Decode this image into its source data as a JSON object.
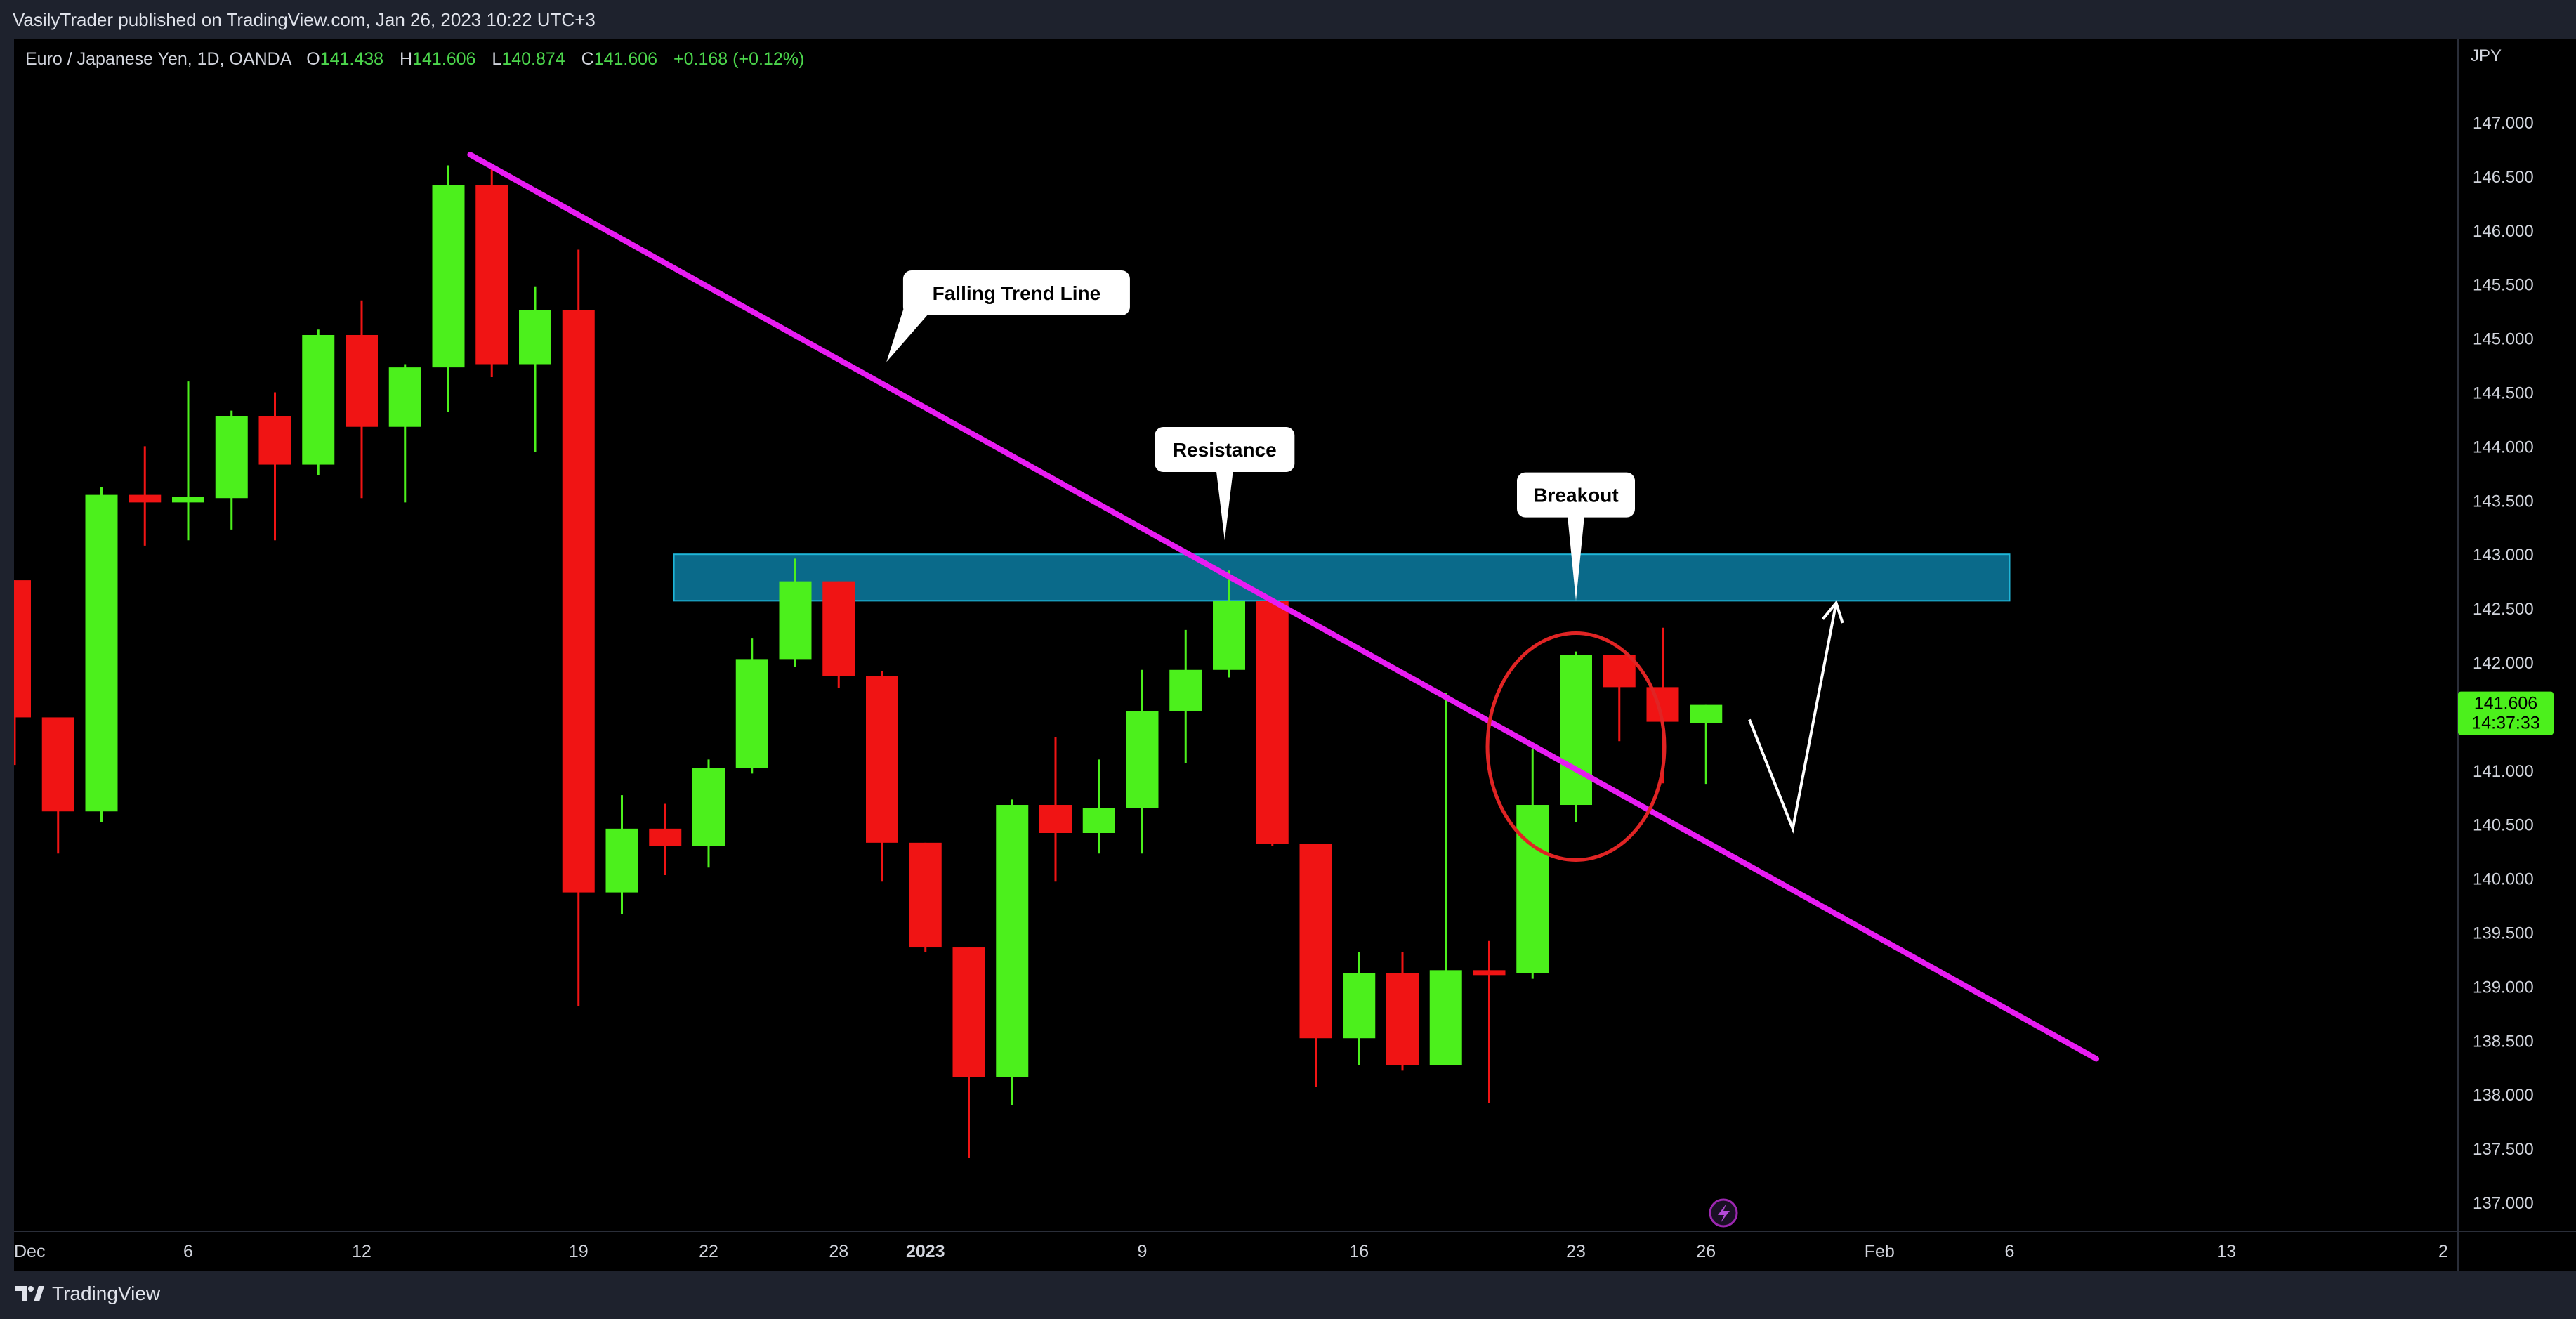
{
  "header": {
    "publisher": "VasilyTrader published on TradingView.com, Jan 26, 2023 10:22 UTC+3"
  },
  "symbol": {
    "name": "Euro / Japanese Yen, 1D, OANDA",
    "o_label": "O",
    "o": "141.438",
    "h_label": "H",
    "h": "141.606",
    "l_label": "L",
    "l": "140.874",
    "c_label": "C",
    "c": "141.606",
    "change": "+0.168 (+0.12%)"
  },
  "footer": {
    "brand": "TradingView"
  },
  "colors": {
    "up": "#4cf01c",
    "down": "#f01414",
    "trend": "#e81cf2",
    "zone_fill": "#0a6a8a",
    "zone_stroke": "#1fb6d8",
    "circle": "#e02424"
  },
  "chart_data": {
    "type": "candlestick",
    "currency": "JPY",
    "y_ticks": [
      "147.000",
      "146.500",
      "146.000",
      "145.500",
      "145.000",
      "144.500",
      "144.000",
      "143.500",
      "143.000",
      "142.500",
      "142.000",
      "141.500",
      "141.000",
      "140.500",
      "140.000",
      "139.500",
      "139.000",
      "138.500",
      "138.000",
      "137.500",
      "137.000"
    ],
    "ylim": [
      136.7,
      147.4
    ],
    "x_ticks": [
      {
        "label": "Dec",
        "day": 0,
        "bold": false
      },
      {
        "label": "6",
        "day": 4,
        "bold": false
      },
      {
        "label": "12",
        "day": 8,
        "bold": false
      },
      {
        "label": "19",
        "day": 13,
        "bold": false
      },
      {
        "label": "22",
        "day": 16,
        "bold": false
      },
      {
        "label": "28",
        "day": 19,
        "bold": false
      },
      {
        "label": "2023",
        "day": 21,
        "bold": true
      },
      {
        "label": "9",
        "day": 26,
        "bold": false
      },
      {
        "label": "16",
        "day": 31,
        "bold": false
      },
      {
        "label": "23",
        "day": 36,
        "bold": false
      },
      {
        "label": "26",
        "day": 39,
        "bold": false
      },
      {
        "label": "Feb",
        "day": 43,
        "bold": false
      },
      {
        "label": "6",
        "day": 46,
        "bold": false
      },
      {
        "label": "13",
        "day": 51,
        "bold": false
      },
      {
        "label": "2",
        "day": 56,
        "bold": false
      }
    ],
    "candles": [
      {
        "o": 142.76,
        "h": 142.76,
        "l": 141.05,
        "c": 141.49
      },
      {
        "o": 141.49,
        "h": 141.49,
        "l": 140.23,
        "c": 140.62
      },
      {
        "o": 140.62,
        "h": 143.62,
        "l": 140.52,
        "c": 143.55
      },
      {
        "o": 143.55,
        "h": 144.0,
        "l": 143.08,
        "c": 143.48
      },
      {
        "o": 143.48,
        "h": 144.6,
        "l": 143.13,
        "c": 143.53
      },
      {
        "o": 143.52,
        "h": 144.33,
        "l": 143.23,
        "c": 144.28
      },
      {
        "o": 144.28,
        "h": 144.5,
        "l": 143.13,
        "c": 143.83
      },
      {
        "o": 143.83,
        "h": 145.08,
        "l": 143.73,
        "c": 145.03
      },
      {
        "o": 145.03,
        "h": 145.35,
        "l": 143.52,
        "c": 144.18
      },
      {
        "o": 144.18,
        "h": 144.76,
        "l": 143.48,
        "c": 144.73
      },
      {
        "o": 144.73,
        "h": 146.6,
        "l": 144.32,
        "c": 146.42
      },
      {
        "o": 146.42,
        "h": 146.6,
        "l": 144.64,
        "c": 144.76
      },
      {
        "o": 144.76,
        "h": 145.48,
        "l": 143.95,
        "c": 145.26
      },
      {
        "o": 145.26,
        "h": 145.82,
        "l": 138.82,
        "c": 139.87
      },
      {
        "o": 139.87,
        "h": 140.77,
        "l": 139.67,
        "c": 140.46
      },
      {
        "o": 140.46,
        "h": 140.69,
        "l": 140.03,
        "c": 140.3
      },
      {
        "o": 140.3,
        "h": 141.1,
        "l": 140.1,
        "c": 141.02
      },
      {
        "o": 141.02,
        "h": 142.22,
        "l": 140.97,
        "c": 142.03
      },
      {
        "o": 142.03,
        "h": 142.96,
        "l": 141.96,
        "c": 142.75
      },
      {
        "o": 142.75,
        "h": 142.75,
        "l": 141.76,
        "c": 141.87
      },
      {
        "o": 141.87,
        "h": 141.92,
        "l": 139.97,
        "c": 140.33
      },
      {
        "o": 140.33,
        "h": 140.33,
        "l": 139.32,
        "c": 139.36
      },
      {
        "o": 139.36,
        "h": 139.36,
        "l": 137.41,
        "c": 138.16
      },
      {
        "o": 138.16,
        "h": 140.73,
        "l": 137.9,
        "c": 140.68
      },
      {
        "o": 140.68,
        "h": 141.31,
        "l": 139.97,
        "c": 140.42
      },
      {
        "o": 140.42,
        "h": 141.1,
        "l": 140.23,
        "c": 140.65
      },
      {
        "o": 140.65,
        "h": 141.93,
        "l": 140.23,
        "c": 141.55
      },
      {
        "o": 141.55,
        "h": 142.3,
        "l": 141.07,
        "c": 141.93
      },
      {
        "o": 141.93,
        "h": 142.85,
        "l": 141.86,
        "c": 142.57
      },
      {
        "o": 142.57,
        "h": 142.57,
        "l": 140.3,
        "c": 140.32
      },
      {
        "o": 140.32,
        "h": 140.32,
        "l": 138.07,
        "c": 138.52
      },
      {
        "o": 138.52,
        "h": 139.32,
        "l": 138.27,
        "c": 139.12
      },
      {
        "o": 139.12,
        "h": 139.32,
        "l": 138.22,
        "c": 138.27
      },
      {
        "o": 138.27,
        "h": 141.72,
        "l": 138.27,
        "c": 139.15
      },
      {
        "o": 139.15,
        "h": 139.42,
        "l": 137.92,
        "c": 139.12
      },
      {
        "o": 139.12,
        "h": 141.2,
        "l": 139.07,
        "c": 140.68
      },
      {
        "o": 140.68,
        "h": 142.1,
        "l": 140.52,
        "c": 142.07
      },
      {
        "o": 142.07,
        "h": 142.07,
        "l": 141.27,
        "c": 141.77
      },
      {
        "o": 141.77,
        "h": 142.32,
        "l": 140.88,
        "c": 141.45
      },
      {
        "o": 141.438,
        "h": 141.606,
        "l": 140.874,
        "c": 141.606
      }
    ],
    "last_price": {
      "value": "141.606",
      "countdown": "14:37:33",
      "y": 141.606
    },
    "resistance_zone": {
      "from_day": 15.2,
      "to_day": 46.0,
      "low": 142.57,
      "high": 143.0
    },
    "trend_line": {
      "from": {
        "day": 10.5,
        "y": 146.7
      },
      "to": {
        "day": 48.0,
        "y": 138.33
      }
    },
    "breakout_circle": {
      "day": 36.0,
      "y": 141.22,
      "rx_days": 2.0,
      "ry_price": 1.05
    },
    "projection": [
      {
        "day": 40.0,
        "y": 141.47
      },
      {
        "day": 41.0,
        "y": 140.46
      },
      {
        "day": 42.0,
        "y": 142.55
      }
    ],
    "annotations": [
      {
        "text": "Falling Trend Line",
        "day": 23.1,
        "y": 145.42,
        "tip_day": 20.1,
        "tip_y": 144.78
      },
      {
        "text": "Resistance",
        "day": 27.9,
        "y": 143.97,
        "tip_day": 27.9,
        "tip_y": 143.13
      },
      {
        "text": "Breakout",
        "day": 36.0,
        "y": 143.55,
        "tip_day": 36.0,
        "tip_y": 142.57
      }
    ]
  }
}
